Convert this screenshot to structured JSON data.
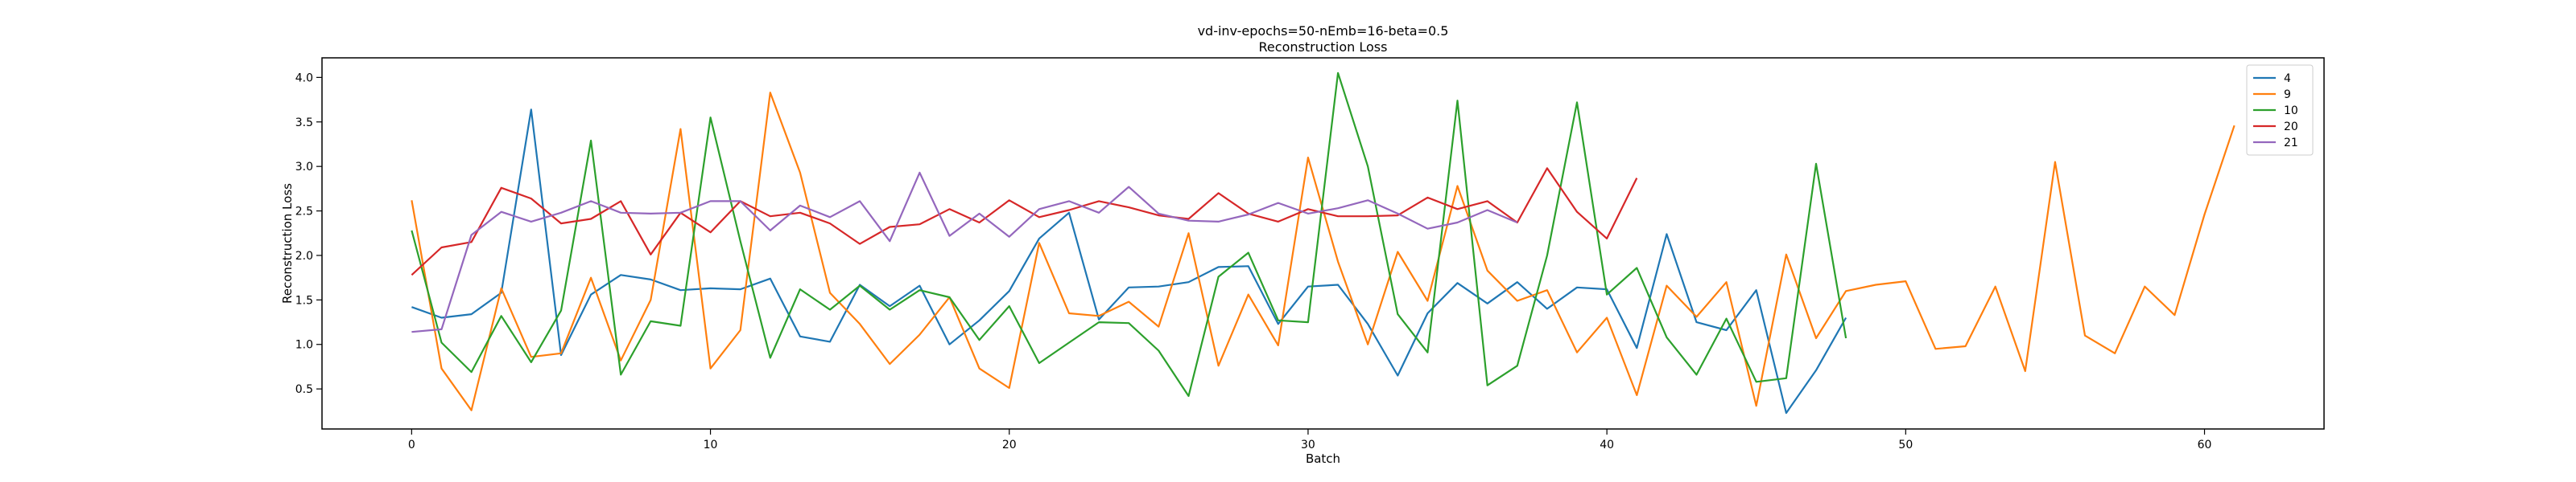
{
  "chart_data": {
    "type": "line",
    "title_line1": "vd-inv-epochs=50-nEmb=16-beta=0.5",
    "title_line2": "Reconstruction Loss",
    "xlabel": "Batch",
    "ylabel": "Reconstruction Loss",
    "xlim": [
      -3,
      64
    ],
    "ylim": [
      0.05,
      4.22
    ],
    "xticks": [
      0,
      10,
      20,
      30,
      40,
      50,
      60
    ],
    "yticks": [
      0.5,
      1.0,
      1.5,
      2.0,
      2.5,
      3.0,
      3.5,
      4.0
    ],
    "ytick_labels": [
      "0.5",
      "1.0",
      "1.5",
      "2.0",
      "2.5",
      "3.0",
      "3.5",
      "4.0"
    ],
    "grid": false,
    "legend_position": "top-right",
    "series": [
      {
        "name": "4",
        "color": "#1f77b4",
        "values": [
          1.42,
          1.3,
          1.34,
          1.58,
          3.64,
          0.88,
          1.56,
          1.78,
          1.73,
          1.61,
          1.63,
          1.62,
          1.74,
          1.09,
          1.03,
          1.67,
          1.43,
          1.66,
          1.0,
          1.27,
          1.6,
          2.19,
          2.48,
          1.28,
          1.64,
          1.65,
          1.7,
          1.87,
          1.88,
          1.23,
          1.65,
          1.67,
          1.23,
          0.65,
          1.35,
          1.69,
          1.46,
          1.7,
          1.4,
          1.64,
          1.62,
          0.96,
          2.24,
          1.25,
          1.16,
          1.61,
          0.23,
          0.71,
          1.3
        ]
      },
      {
        "name": "9",
        "color": "#ff7f0e",
        "values": [
          2.62,
          0.73,
          0.26,
          1.63,
          0.86,
          0.9,
          1.75,
          0.82,
          1.5,
          3.42,
          0.73,
          1.16,
          3.83,
          2.93,
          1.58,
          1.23,
          0.78,
          1.11,
          1.53,
          0.73,
          0.51,
          2.14,
          1.35,
          1.32,
          1.48,
          1.2,
          2.25,
          0.76,
          1.56,
          0.99,
          3.1,
          1.93,
          1.0,
          2.04,
          1.49,
          2.78,
          1.83,
          1.49,
          1.61,
          0.91,
          1.3,
          0.43,
          1.66,
          1.31,
          1.7,
          0.31,
          2.01,
          1.07,
          1.6,
          1.67,
          1.71,
          0.95,
          0.98,
          1.65,
          0.7,
          3.05,
          1.1,
          0.9,
          1.65,
          1.33,
          2.46,
          3.46
        ]
      },
      {
        "name": "10",
        "color": "#2ca02c",
        "values": [
          2.28,
          1.02,
          0.69,
          1.32,
          0.8,
          1.38,
          3.29,
          0.66,
          1.26,
          1.21,
          3.55,
          2.16,
          0.85,
          1.62,
          1.39,
          1.66,
          1.39,
          1.61,
          1.53,
          1.05,
          1.43,
          0.79,
          1.02,
          1.25,
          1.24,
          0.93,
          0.42,
          1.76,
          2.03,
          1.27,
          1.25,
          4.05,
          3.0,
          1.34,
          0.91,
          3.74,
          0.54,
          0.76,
          2.0,
          3.72,
          1.56,
          1.86,
          1.08,
          0.66,
          1.29,
          0.58,
          0.62,
          3.03,
          1.07
        ]
      },
      {
        "name": "20",
        "color": "#d62728",
        "values": [
          1.78,
          2.09,
          2.15,
          2.76,
          2.64,
          2.36,
          2.41,
          2.61,
          2.01,
          2.48,
          2.26,
          2.61,
          2.44,
          2.48,
          2.36,
          2.13,
          2.32,
          2.35,
          2.52,
          2.37,
          2.62,
          2.43,
          2.51,
          2.61,
          2.54,
          2.45,
          2.41,
          2.7,
          2.47,
          2.38,
          2.52,
          2.44,
          2.44,
          2.45,
          2.65,
          2.52,
          2.61,
          2.37,
          2.98,
          2.49,
          2.19,
          2.87
        ]
      },
      {
        "name": "21",
        "color": "#9467bd",
        "values": [
          1.14,
          1.17,
          2.23,
          2.49,
          2.38,
          2.48,
          2.61,
          2.48,
          2.47,
          2.48,
          2.61,
          2.61,
          2.28,
          2.56,
          2.43,
          2.61,
          2.16,
          2.93,
          2.22,
          2.47,
          2.21,
          2.52,
          2.61,
          2.48,
          2.77,
          2.47,
          2.39,
          2.38,
          2.46,
          2.59,
          2.47,
          2.53,
          2.62,
          2.47,
          2.3,
          2.37,
          2.51,
          2.37
        ]
      }
    ]
  }
}
